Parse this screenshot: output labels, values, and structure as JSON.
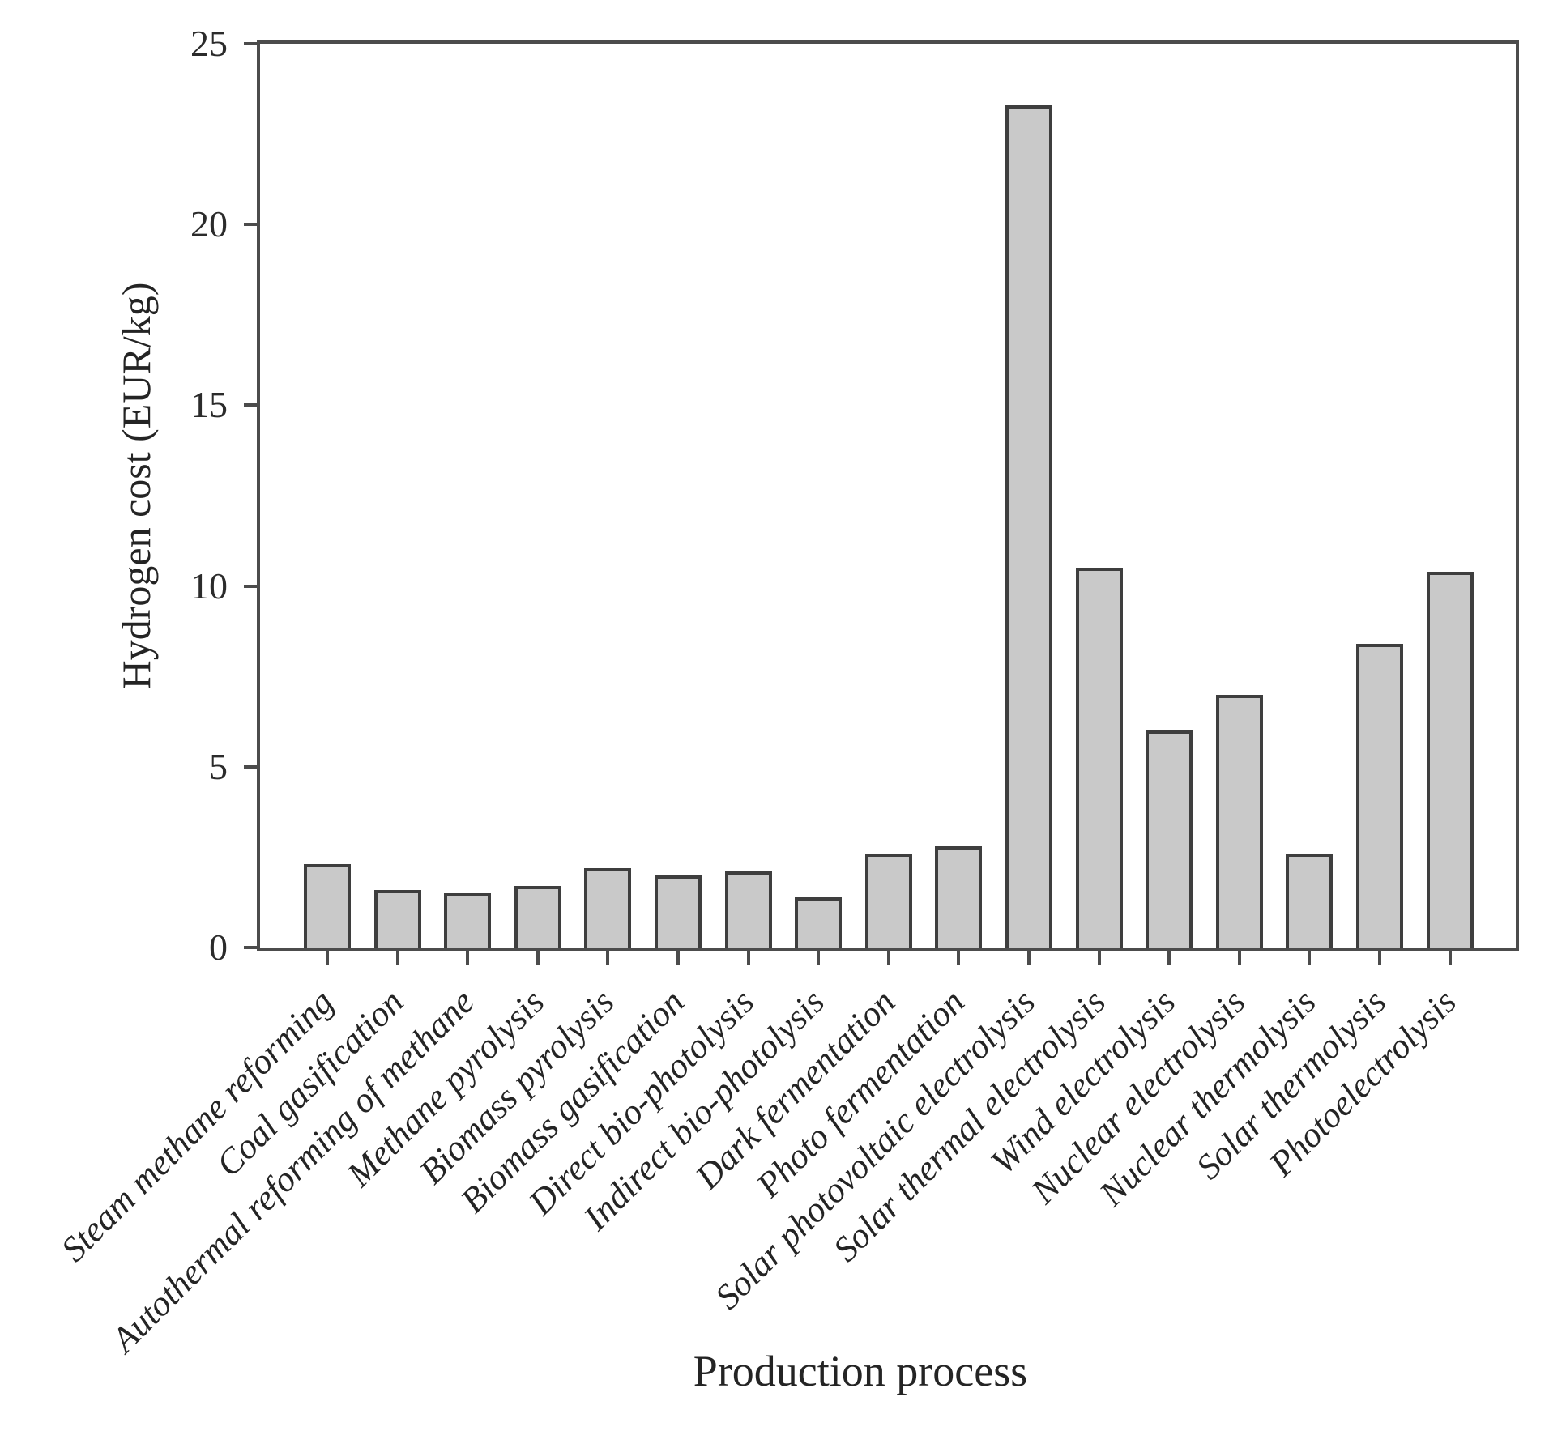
{
  "figure": {
    "kind": "static-bar-chart-figure"
  },
  "chart_data": {
    "type": "bar",
    "title": "",
    "xlabel": "Production process",
    "ylabel": "Hydrogen cost (EUR/kg)",
    "categories": [
      "Steam methane reforming",
      "Coal gasification",
      "Autothermal reforming of methane",
      "Methane pyrolysis",
      "Biomass pyrolysis",
      "Biomass gasification",
      "Direct bio-photolysis",
      "Indirect bio-photolysis",
      "Dark fermentation",
      "Photo fermentation",
      "Solar photovoltaic electrolysis",
      "Solar thermal electrolysis",
      "Wind electrolysis",
      "Nuclear electrolysis",
      "Nuclear thermolysis",
      "Solar thermolysis",
      "Photoelectrolysis"
    ],
    "values": [
      2.3,
      1.6,
      1.5,
      1.7,
      2.2,
      2.0,
      2.1,
      1.4,
      2.6,
      2.8,
      23.3,
      10.5,
      6.0,
      7.0,
      2.6,
      8.4,
      10.4
    ],
    "ylim": [
      0,
      25
    ],
    "yticks": [
      0,
      5,
      10,
      15,
      20,
      25
    ],
    "ytick_labels": [
      "0",
      "5",
      "10",
      "15",
      "20",
      "25"
    ],
    "grid": false,
    "legend": "none",
    "xlabel_rotation_deg": 45,
    "colors": {
      "bar_fill": "#c9c9c9",
      "bar_border": "#3e3e3e",
      "axis": "#4c4c4c",
      "text": "#242424"
    }
  }
}
